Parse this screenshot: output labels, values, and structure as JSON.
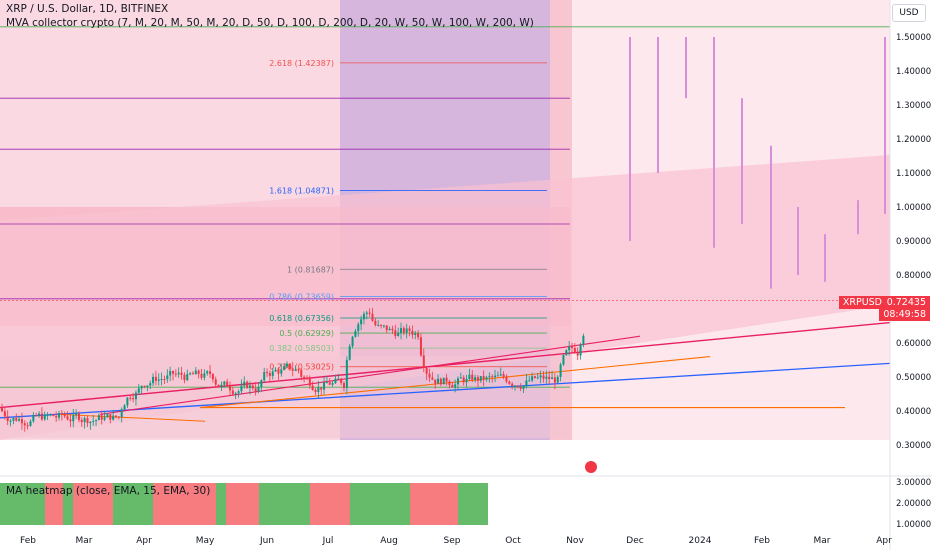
{
  "header": {
    "symbol_title": "XRP / U.S. Dollar, 1D, BITFINEX",
    "indicator": "MVA collector crypto (7, M, 20, M, 50, M, 20, D, 50, D, 100, D, 200, D, 20, W, 50, W, 100, W, 200, W)"
  },
  "currency": "USD",
  "price_tag": {
    "symbol": "XRPUSD",
    "price": "0.72435",
    "countdown": "08:49:58",
    "color": "#f23645"
  },
  "heatmap": {
    "label": "MA heatmap (close, EMA, 15, EMA, 30)",
    "segments": [
      {
        "color": "green"
      },
      {
        "color": "red"
      },
      {
        "color": "green"
      },
      {
        "color": "red"
      },
      {
        "color": "green"
      },
      {
        "color": "red"
      },
      {
        "color": "green"
      },
      {
        "color": "red"
      },
      {
        "color": "green"
      },
      {
        "color": "red"
      },
      {
        "color": "green"
      },
      {
        "color": "red"
      },
      {
        "color": "green"
      }
    ],
    "axis": [
      "3.00000",
      "2.00000",
      "1.00000"
    ]
  },
  "y_axis": [
    "1.50000",
    "1.40000",
    "1.30000",
    "1.20000",
    "1.10000",
    "1.00000",
    "0.90000",
    "0.80000",
    "0.60000",
    "0.50000",
    "0.40000",
    "0.30000"
  ],
  "x_axis": [
    "Feb",
    "Mar",
    "Apr",
    "May",
    "Jun",
    "Jul",
    "Aug",
    "Sep",
    "Oct",
    "Nov",
    "Dec",
    "2024",
    "Feb",
    "Mar",
    "Apr"
  ],
  "fib_levels": [
    {
      "label": "2.618 (1.42387)",
      "value": 1.42387,
      "color": "#ef5350"
    },
    {
      "label": "1.618 (1.04871)",
      "value": 1.04871,
      "color": "#2962ff"
    },
    {
      "label": "1 (0.81687)",
      "value": 0.81687,
      "color": "#787b86"
    },
    {
      "label": "0.786 (0.73659)",
      "value": 0.73659,
      "color": "#5b9cf6"
    },
    {
      "label": "0.618 (0.67356)",
      "value": 0.67356,
      "color": "#089981"
    },
    {
      "label": "0.5 (0.62929)",
      "value": 0.62929,
      "color": "#4caf50"
    },
    {
      "label": "0.382 (0.58503)",
      "value": 0.58503,
      "color": "#81c784"
    },
    {
      "label": "0.236 (0.53025)",
      "value": 0.53025,
      "color": "#f44336"
    }
  ],
  "colors": {
    "up": "#089981",
    "down": "#f23645",
    "heat_green": "#66bb6a",
    "heat_red": "#f77c80"
  }
}
